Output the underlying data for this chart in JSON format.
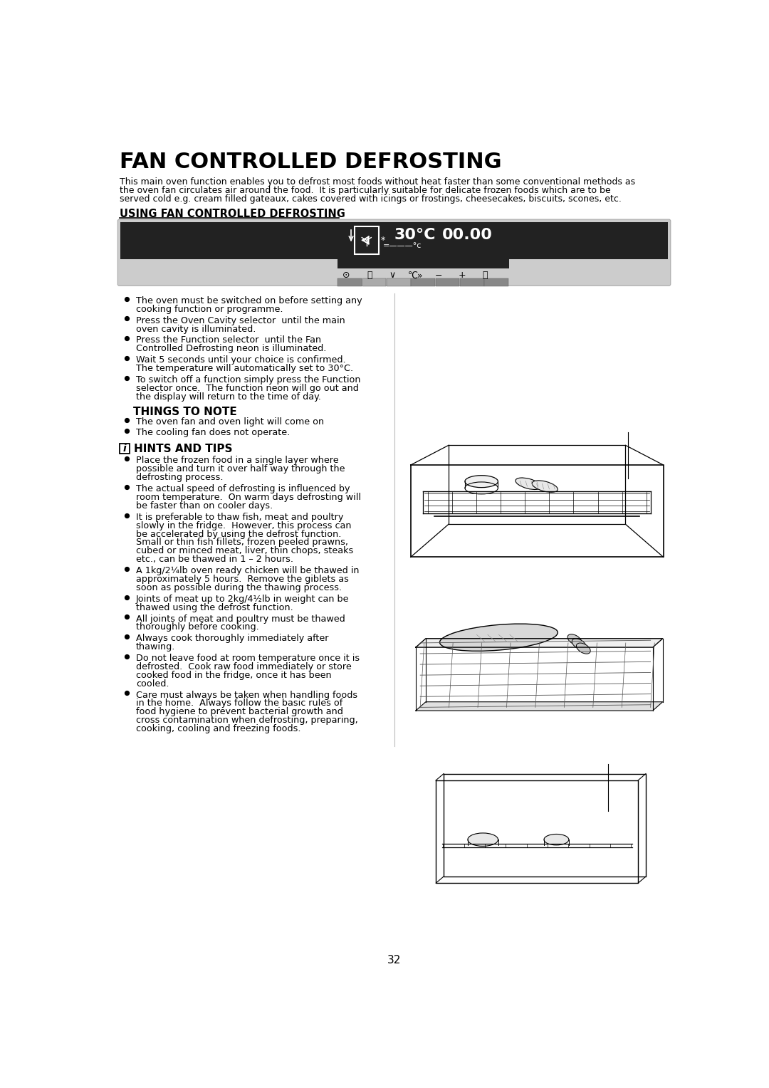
{
  "title": "FAN CONTROLLED DEFROSTING",
  "subtitle": "This main oven function enables you to defrost most foods without heat faster than some conventional methods as\nthe oven fan circulates air around the food.  It is particularly suitable for delicate frozen foods which are to be\nserved cold e.g. cream filled gateaux, cakes covered with icings or frostings, cheesecakes, biscuits, scones, etc.",
  "section_heading": "USING FAN CONTROLLED DEFROSTING",
  "bullets_left": [
    "The oven must be switched on before setting any\ncooking function or programme.",
    "Press the Oven Cavity selector  until the main\noven cavity is illuminated.",
    "Press the Function selector  until the Fan\nControlled Defrosting neon is illuminated.",
    "Wait 5 seconds until your choice is confirmed.\nThe temperature will automatically set to 30°C.",
    "To switch off a function simply press the Function\nselector once.  The function neon will go out and\nthe display will return to the time of day."
  ],
  "things_to_note_heading": "THINGS TO NOTE",
  "things_to_note_bullets": [
    "The oven fan and oven light will come on",
    "The cooling fan does not operate."
  ],
  "hints_heading": "HINTS AND TIPS",
  "hints_bullets": [
    "Place the frozen food in a single layer where\npossible and turn it over half way through the\ndefrosting process.",
    "The actual speed of defrosting is influenced by\nroom temperature.  On warm days defrosting will\nbe faster than on cooler days.",
    "It is preferable to thaw fish, meat and poultry\nslowly in the fridge.  However, this process can\nbe accelerated by using the defrost function.\nSmall or thin fish fillets, frozen peeled prawns,\ncubed or minced meat, liver, thin chops, steaks\netc., can be thawed in 1 – 2 hours.",
    "A 1kg/2¼lb oven ready chicken will be thawed in\napproximately 5 hours.  Remove the giblets as\nsoon as possible during the thawing process.",
    "Joints of meat up to 2kg/4½lb in weight can be\nthawed using the defrost function.",
    "All joints of meat and poultry must be thawed\nthoroughly before cooking.",
    "Always cook thoroughly immediately after\nthawing.",
    "Do not leave food at room temperature once it is\ndefrosted.  Cook raw food immediately or store\ncooked food in the fridge, once it has been\ncooled.",
    "Care must always be taken when handling foods\nin the home.  Always follow the basic rules of\nfood hygiene to prevent bacterial growth and\ncross contamination when defrosting, preparing,\ncooking, cooling and freezing foods."
  ],
  "page_number": "32",
  "bg_color": "#ffffff",
  "text_color": "#000000",
  "panel_bg": "#cccccc",
  "display_bg": "#222222",
  "display_text_color": "#ffffff",
  "btn_bar_color": "#888888",
  "btn_light_color": "#aaaaaa"
}
